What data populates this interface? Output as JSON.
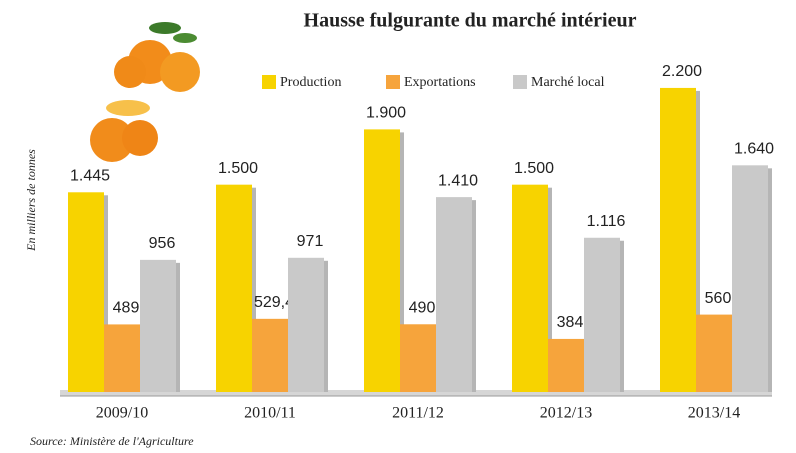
{
  "chart_data": {
    "type": "bar",
    "title": "Hausse fulgurante du marché intérieur",
    "y_label": "En milliers de tonnes",
    "source": "Source: Ministère de l'Agriculture",
    "categories": [
      "2009/10",
      "2010/11",
      "2011/12",
      "2012/13",
      "2013/14"
    ],
    "series": [
      {
        "name": "Production",
        "color": "#f7d300",
        "values": [
          1445,
          1500,
          1900,
          1500,
          2200
        ],
        "value_labels": [
          "1.445",
          "1.500",
          "1.900",
          "1.500",
          "2.200"
        ]
      },
      {
        "name": "Exportations",
        "color": "#f6a43c",
        "values": [
          489,
          529.4,
          490,
          384,
          560
        ],
        "value_labels": [
          "489",
          "529,4",
          "490",
          "384",
          "560"
        ]
      },
      {
        "name": "Marché local",
        "color": "#c9c9c9",
        "values": [
          956,
          971,
          1410,
          1116,
          1640
        ],
        "value_labels": [
          "956",
          "971",
          "1.410",
          "1.116",
          "1.640"
        ]
      }
    ],
    "ylim": [
      0,
      2800
    ]
  }
}
